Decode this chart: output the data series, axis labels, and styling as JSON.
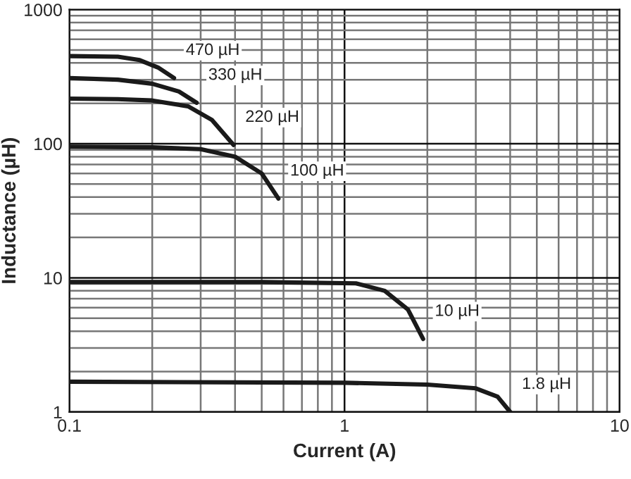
{
  "chart_data": {
    "type": "line",
    "xlabel": "Current (A)",
    "ylabel": "Inductance (µH)",
    "log": "xy",
    "grid": true,
    "xlim": [
      0.1,
      10
    ],
    "xticks": [
      0.1,
      1,
      10
    ],
    "ylim": [
      1,
      1000
    ],
    "yticks": [
      1,
      10,
      100,
      1000
    ],
    "line_style": "solid",
    "series": [
      {
        "name": "470 µH",
        "color": "#1a1a1a",
        "x": [
          0.1,
          0.15,
          0.18,
          0.21,
          0.24
        ],
        "values": [
          450,
          445,
          420,
          370,
          309
        ]
      },
      {
        "name": "330 µH",
        "color": "#1a1a1a",
        "x": [
          0.1,
          0.15,
          0.2,
          0.25,
          0.29
        ],
        "values": [
          309,
          300,
          280,
          245,
          202
        ]
      },
      {
        "name": "220 µH",
        "color": "#1a1a1a",
        "x": [
          0.1,
          0.15,
          0.2,
          0.27,
          0.33,
          0.395
        ],
        "values": [
          217,
          215,
          210,
          190,
          150,
          98
        ]
      },
      {
        "name": "100 µH",
        "color": "#1a1a1a",
        "x": [
          0.1,
          0.2,
          0.3,
          0.4,
          0.5,
          0.575
        ],
        "values": [
          95,
          94,
          91,
          80,
          60,
          39
        ]
      },
      {
        "name": "10 µH",
        "color": "#1a1a1a",
        "x": [
          0.1,
          0.5,
          1.1,
          1.4,
          1.7,
          1.93
        ],
        "values": [
          9.3,
          9.3,
          9.1,
          8,
          5.8,
          3.5
        ]
      },
      {
        "name": "1.8 µH",
        "color": "#1a1a1a",
        "x": [
          0.1,
          1,
          2,
          3,
          3.6,
          4.0
        ],
        "values": [
          1.68,
          1.65,
          1.6,
          1.5,
          1.3,
          1.0
        ]
      }
    ]
  }
}
